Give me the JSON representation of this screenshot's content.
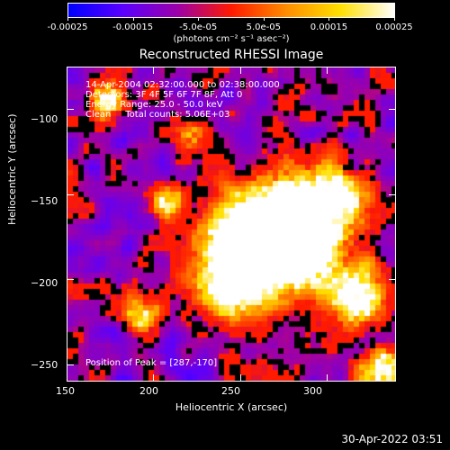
{
  "colorbar": {
    "tick_labels": [
      "-0.00025",
      "-0.00015",
      "-5.0e-05",
      "5.0e-05",
      "0.00015",
      "0.00025"
    ],
    "tick_values": [
      -0.00025,
      -0.00015,
      -5e-05,
      5e-05,
      0.00015,
      0.00025
    ],
    "range": [
      -0.00025,
      0.00025
    ],
    "units_label": "(photons cm⁻² s⁻¹ asec⁻²)",
    "colormap": [
      "#0000ff",
      "#5a00ff",
      "#9b00aa",
      "#ff1a00",
      "#ff8c00",
      "#ffe000",
      "#ffffff"
    ]
  },
  "plot": {
    "title": "Reconstructed RHESSI Image",
    "info_lines": [
      "14-Apr-2004 02:32:00.000 to 02:38:00.000",
      "Detectors: 3F 4F 5F 6F 7F 8F, Att 0",
      "Energy Range: 25.0 - 50.0 keV",
      "Clean     Total counts: 5.06E+03"
    ],
    "peak_label": "Position of Peak = [287,-170]",
    "xlabel": "Heliocentric X (arcsec)",
    "ylabel": "Heliocentric Y (arcsec)",
    "xlim": [
      150,
      340
    ],
    "ylim": [
      -260,
      -75
    ],
    "x_ticks": [
      150,
      200,
      250,
      300
    ],
    "x_tick_labels": [
      "150",
      "200",
      "250",
      "300"
    ],
    "y_ticks": [
      -100,
      -150,
      -200,
      -250
    ],
    "y_tick_labels": [
      "−100",
      "−150",
      "−200",
      "−250"
    ],
    "peak": [
      287,
      -170
    ]
  },
  "timestamp": "30-Apr-2022 03:51"
}
